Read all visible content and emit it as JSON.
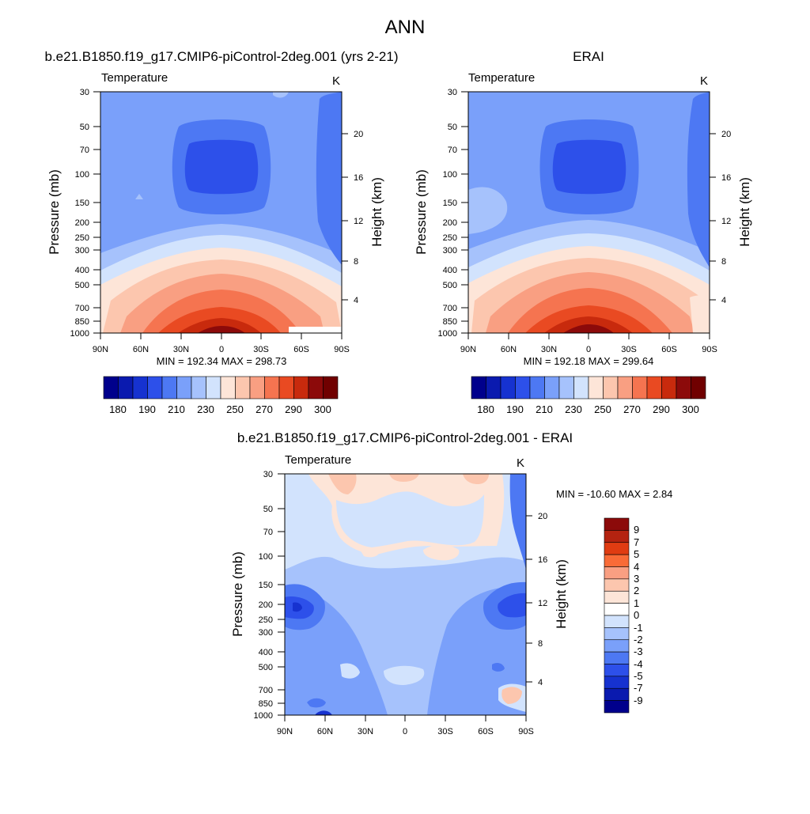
{
  "figure_title": "ANN",
  "chart_data": [
    {
      "type": "heatmap",
      "title": "b.e21.B1850.f19_g17.CMIP6-piControl-2deg.001 (yrs 2-21)",
      "variable": "Temperature",
      "units": "K",
      "xlabel": "",
      "ylabel": "Pressure (mb)",
      "y2label": "Height (km)",
      "x_ticks": [
        "90N",
        "60N",
        "30N",
        "0",
        "30S",
        "60S",
        "90S"
      ],
      "y_ticks": [
        "30",
        "50",
        "70",
        "100",
        "150",
        "200",
        "250",
        "300",
        "400",
        "500",
        "700",
        "850",
        "1000"
      ],
      "y2_ticks": [
        "20",
        "16",
        "12",
        "8",
        "4"
      ],
      "stats": "MIN = 192.34  MAX = 298.73",
      "min": 192.34,
      "max": 298.73,
      "colorbar_labels": [
        "180",
        "190",
        "210",
        "230",
        "250",
        "270",
        "290",
        "300"
      ],
      "log_pressure_axis": true
    },
    {
      "type": "heatmap",
      "title": "ERAI",
      "variable": "Temperature",
      "units": "K",
      "xlabel": "",
      "ylabel": "Pressure (mb)",
      "y2label": "Height (km)",
      "x_ticks": [
        "90N",
        "60N",
        "30N",
        "0",
        "30S",
        "60S",
        "90S"
      ],
      "y_ticks": [
        "30",
        "50",
        "70",
        "100",
        "150",
        "200",
        "250",
        "300",
        "400",
        "500",
        "700",
        "850",
        "1000"
      ],
      "y2_ticks": [
        "20",
        "16",
        "12",
        "8",
        "4"
      ],
      "stats": "MIN = 192.18  MAX = 299.64",
      "min": 192.18,
      "max": 299.64,
      "colorbar_labels": [
        "180",
        "190",
        "210",
        "230",
        "250",
        "270",
        "290",
        "300"
      ],
      "log_pressure_axis": true
    },
    {
      "type": "heatmap",
      "title": "b.e21.B1850.f19_g17.CMIP6-piControl-2deg.001 - ERAI",
      "variable": "Temperature",
      "units": "K",
      "xlabel": "",
      "ylabel": "Pressure (mb)",
      "y2label": "Height (km)",
      "x_ticks": [
        "90N",
        "60N",
        "30N",
        "0",
        "30S",
        "60S",
        "90S"
      ],
      "y_ticks": [
        "30",
        "50",
        "70",
        "100",
        "150",
        "200",
        "250",
        "300",
        "400",
        "500",
        "700",
        "850",
        "1000"
      ],
      "y2_ticks": [
        "20",
        "16",
        "12",
        "8",
        "4"
      ],
      "stats": "MIN = -10.60  MAX =   2.84",
      "min": -10.6,
      "max": 2.84,
      "colorbar_labels": [
        "9",
        "7",
        "5",
        "4",
        "3",
        "2",
        "1",
        "0",
        "-1",
        "-2",
        "-3",
        "-4",
        "-5",
        "-7",
        "-9"
      ],
      "log_pressure_axis": true
    }
  ],
  "palettes": {
    "absolute": [
      "#00008c",
      "#0a1aaf",
      "#1632d0",
      "#2d50ea",
      "#4d78f3",
      "#7aa0fa",
      "#a6c2fc",
      "#d2e3fd",
      "#fde5d8",
      "#fcc6ae",
      "#f99f82",
      "#f57450",
      "#e94a22",
      "#c82a0d",
      "#8c0a0a",
      "#700000"
    ],
    "diff": [
      "#8c0a0a",
      "#b42310",
      "#e03c12",
      "#f96b37",
      "#f99f82",
      "#fcc6ae",
      "#fde5d8",
      "#ffffff",
      "#d2e3fd",
      "#a6c2fc",
      "#7aa0fa",
      "#4d78f3",
      "#2d50ea",
      "#1632d0",
      "#0a1aaf",
      "#00008c"
    ]
  }
}
